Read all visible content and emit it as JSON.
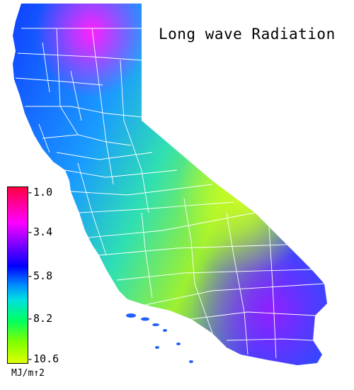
{
  "title": "Long wave Radiation",
  "legend": {
    "ticks": [
      "-1.0",
      "-3.4",
      "-5.8",
      "-8.2",
      "-10.6"
    ],
    "units": "MJ/m↑2",
    "colors": [
      "#ff0040",
      "#ff00ff",
      "#7a00ff",
      "#0000ff",
      "#0090ff",
      "#00e0e0",
      "#00ff60",
      "#80ff00",
      "#e0ff00"
    ]
  }
}
